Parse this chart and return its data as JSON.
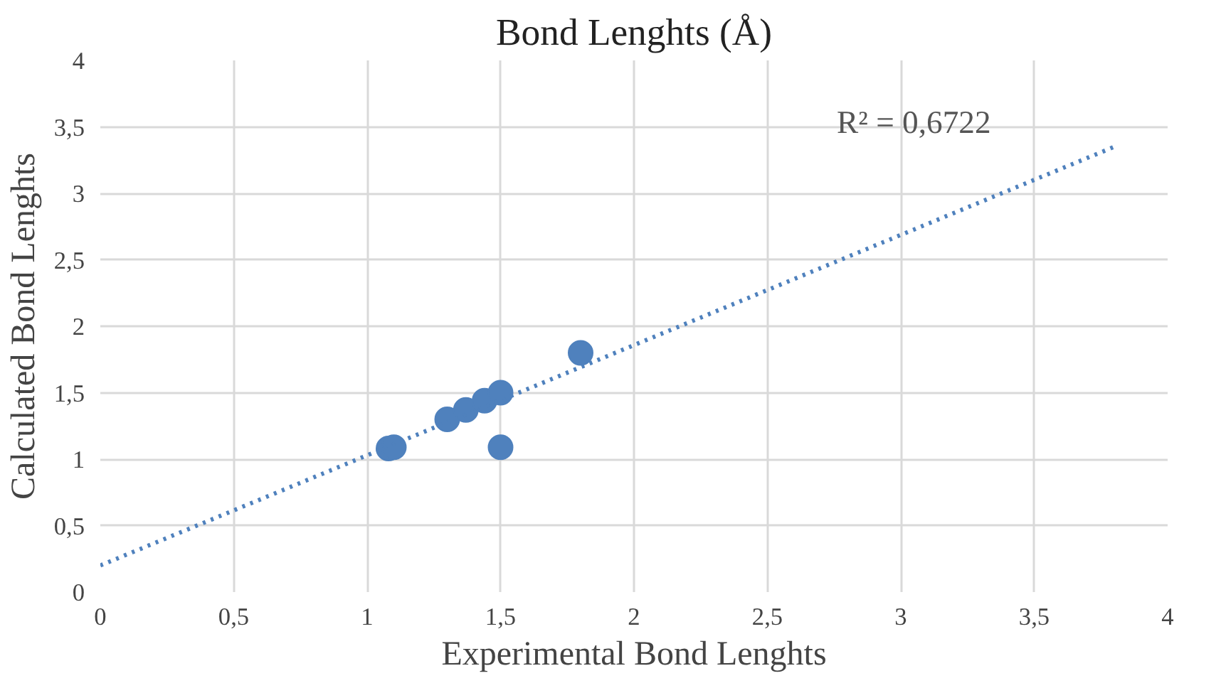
{
  "chart_data": {
    "type": "scatter",
    "title": "Bond Lenghts (Å)",
    "xlabel": "Experimental Bond Lenghts",
    "ylabel": "Calculated Bond Lenghts",
    "annotations": [
      "R² = 0,6722"
    ],
    "series": [
      {
        "color": "#4f81bd",
        "marker": "circle",
        "x": [
          1.08,
          1.1,
          1.3,
          1.37,
          1.44,
          1.5,
          1.5,
          1.8
        ],
        "values": [
          1.08,
          1.09,
          1.3,
          1.37,
          1.44,
          1.5,
          1.09,
          1.8
        ]
      },
      {
        "type": "line",
        "color": "#4f81bd",
        "line_style": "dotted",
        "x": [
          0,
          3.8
        ],
        "values": [
          0.2,
          3.35
        ]
      }
    ],
    "xlim": [
      0,
      4
    ],
    "ylim": [
      0,
      4
    ],
    "xticks": [
      0,
      {
        "value": 0.5,
        "label": "0,5"
      },
      1,
      {
        "value": 1.5,
        "label": "1,5"
      },
      2,
      {
        "value": 2.5,
        "label": "2,5"
      },
      3,
      {
        "value": 3.5,
        "label": "3,5"
      },
      4
    ],
    "yticks": [
      0,
      {
        "value": 0.5,
        "label": "0,5"
      },
      1,
      {
        "value": 1.5,
        "label": "1,5"
      },
      2,
      {
        "value": 2.5,
        "label": "2,5"
      },
      3,
      {
        "value": 3.5,
        "label": "3,5"
      },
      4
    ],
    "grid": true
  }
}
